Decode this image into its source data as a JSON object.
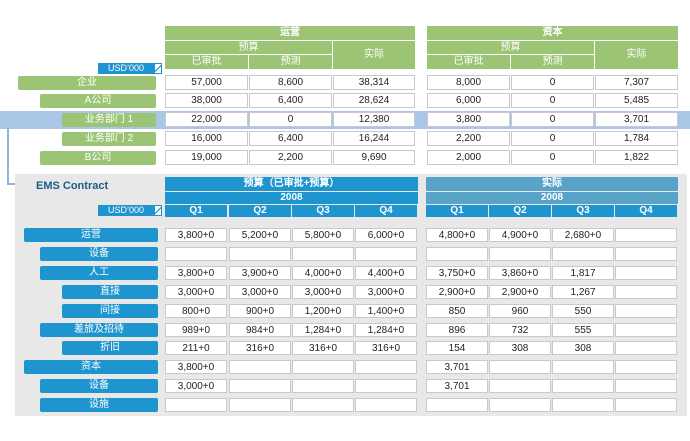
{
  "top": {
    "currency": "USD’000",
    "groups": [
      {
        "title": "运营",
        "budget_label": "预算",
        "actual_label": "实际",
        "col_approved": "已审批",
        "col_forecast": "预测"
      },
      {
        "title": "资本",
        "budget_label": "预算",
        "actual_label": "实际",
        "col_approved": "已审批",
        "col_forecast": "预测"
      }
    ],
    "rows": [
      {
        "label": "企业",
        "values": [
          "57,000",
          "8,600",
          "38,314",
          "8,000",
          "0",
          "7,307"
        ]
      },
      {
        "label": "A公司",
        "values": [
          "38,000",
          "6,400",
          "28,624",
          "6,000",
          "0",
          "5,485"
        ]
      },
      {
        "label": "业务部门 1",
        "values": [
          "22,000",
          "0",
          "12,380",
          "3,800",
          "0",
          "3,701"
        ]
      },
      {
        "label": "业务部门 2",
        "values": [
          "16,000",
          "6,400",
          "16,244",
          "2,200",
          "0",
          "1,784"
        ]
      },
      {
        "label": "B公司",
        "values": [
          "19,000",
          "2,200",
          "9,690",
          "2,000",
          "0",
          "1,822"
        ]
      }
    ]
  },
  "bottom": {
    "title": "EMS Contract",
    "currency": "USD’000",
    "budget_title": "预算（已审批+预算）",
    "actual_title": "实际",
    "year": "2008",
    "quarters": [
      "Q1",
      "Q2",
      "Q3",
      "Q4"
    ],
    "rows": [
      {
        "label": "运营",
        "budget": [
          "3,800+0",
          "5,200+0",
          "5,800+0",
          "6,000+0"
        ],
        "actual": [
          "4,800+0",
          "4,900+0",
          "2,680+0",
          ""
        ]
      },
      {
        "label": "设备",
        "budget": [
          "",
          "",
          "",
          ""
        ],
        "actual": [
          "",
          "",
          "",
          ""
        ]
      },
      {
        "label": "人工",
        "budget": [
          "3,800+0",
          "3,900+0",
          "4,000+0",
          "4,400+0"
        ],
        "actual": [
          "3,750+0",
          "3,860+0",
          "1,817",
          ""
        ]
      },
      {
        "label": "直接",
        "budget": [
          "3,000+0",
          "3,000+0",
          "3,000+0",
          "3,000+0"
        ],
        "actual": [
          "2,900+0",
          "2,900+0",
          "1,267",
          ""
        ]
      },
      {
        "label": "间接",
        "budget": [
          "800+0",
          "900+0",
          "1,200+0",
          "1,400+0"
        ],
        "actual": [
          "850",
          "960",
          "550",
          ""
        ]
      },
      {
        "label": "差旅及招待",
        "budget": [
          "989+0",
          "984+0",
          "1,284+0",
          "1,284+0"
        ],
        "actual": [
          "896",
          "732",
          "555",
          ""
        ]
      },
      {
        "label": "折旧",
        "budget": [
          "211+0",
          "316+0",
          "316+0",
          "316+0"
        ],
        "actual": [
          "154",
          "308",
          "308",
          ""
        ]
      },
      {
        "label": "资本",
        "budget": [
          "3,800+0",
          "",
          "",
          ""
        ],
        "actual": [
          "3,701",
          "",
          "",
          ""
        ]
      },
      {
        "label": "设备",
        "budget": [
          "3,000+0",
          "",
          "",
          ""
        ],
        "actual": [
          "3,701",
          "",
          "",
          ""
        ]
      },
      {
        "label": "设施",
        "budget": [
          "",
          "",
          "",
          ""
        ],
        "actual": [
          "",
          "",
          "",
          ""
        ]
      }
    ]
  },
  "colors": {
    "green": "#9bc574",
    "blue": "#1f95cf",
    "highlight": "#a9c6e6",
    "panel": "#e8e8e8"
  }
}
